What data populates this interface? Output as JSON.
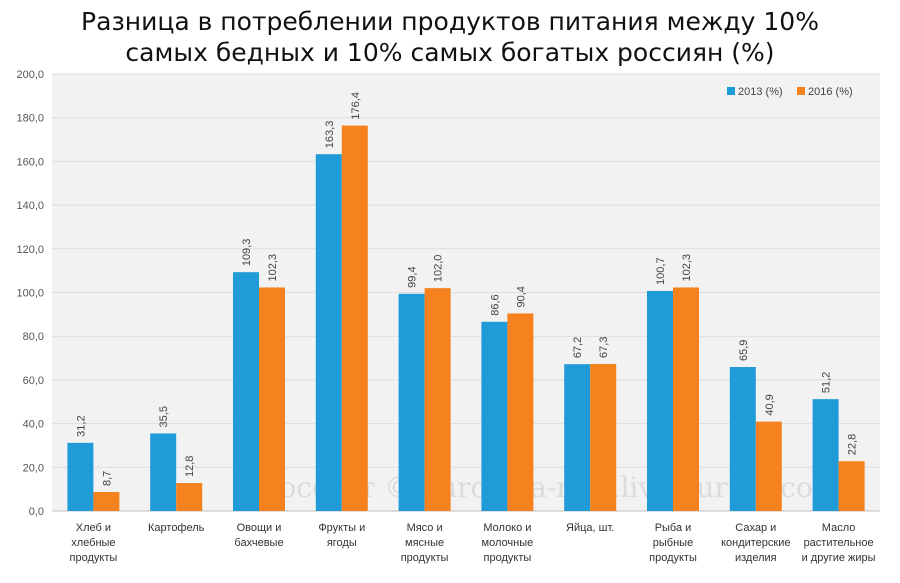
{
  "title": "Разница в потреблении продуктов питания между 10%\nсамых бедных и 10% самых богатых россиян (%)",
  "watermark": "Росстат © burckina-new.livejournal.com",
  "colors": {
    "series_2013": "#1f9bd7",
    "series_2016": "#f5821f",
    "grid": "#dddddd",
    "plot_bg": "#f2f2f2"
  },
  "chart_data": {
    "type": "bar",
    "title": "Разница в потреблении продуктов питания между 10% самых бедных и 10% самых богатых россиян (%)",
    "categories": [
      [
        "Хлеб и",
        "хлебные",
        "продукты"
      ],
      [
        "Картофель"
      ],
      [
        "Овощи и",
        "бахчевые"
      ],
      [
        "Фрукты и",
        "ягоды"
      ],
      [
        "Мясо и",
        "мясные",
        "продукты"
      ],
      [
        "Молоко и",
        "молочные",
        "продукты"
      ],
      [
        "Яйца, шт."
      ],
      [
        "Рыба и",
        "рыбные",
        "продукты"
      ],
      [
        "Сахар и",
        "кондитерские",
        "изделия"
      ],
      [
        "Масло",
        "растительное",
        "и другие жиры"
      ]
    ],
    "series": [
      {
        "name": "2013 (%)",
        "values": [
          31.2,
          35.5,
          109.3,
          163.3,
          99.4,
          86.6,
          67.2,
          100.7,
          65.9,
          51.2
        ],
        "labels": [
          "31,2",
          "35,5",
          "109,3",
          "163,3",
          "99,4",
          "86,6",
          "67,2",
          "100,7",
          "65,9",
          "51,2"
        ]
      },
      {
        "name": "2016 (%)",
        "values": [
          8.7,
          12.8,
          102.3,
          176.4,
          102.0,
          90.4,
          67.3,
          102.3,
          40.9,
          22.8
        ],
        "labels": [
          "8,7",
          "12,8",
          "102,3",
          "176,4",
          "102,0",
          "90,4",
          "67,3",
          "102,3",
          "40,9",
          "22,8"
        ]
      }
    ],
    "ylim": [
      0,
      200
    ],
    "yticks": [
      "0,0",
      "20,0",
      "40,0",
      "60,0",
      "80,0",
      "100,0",
      "120,0",
      "140,0",
      "160,0",
      "180,0",
      "200,0"
    ],
    "grid": true,
    "legend_position": "top-right"
  }
}
